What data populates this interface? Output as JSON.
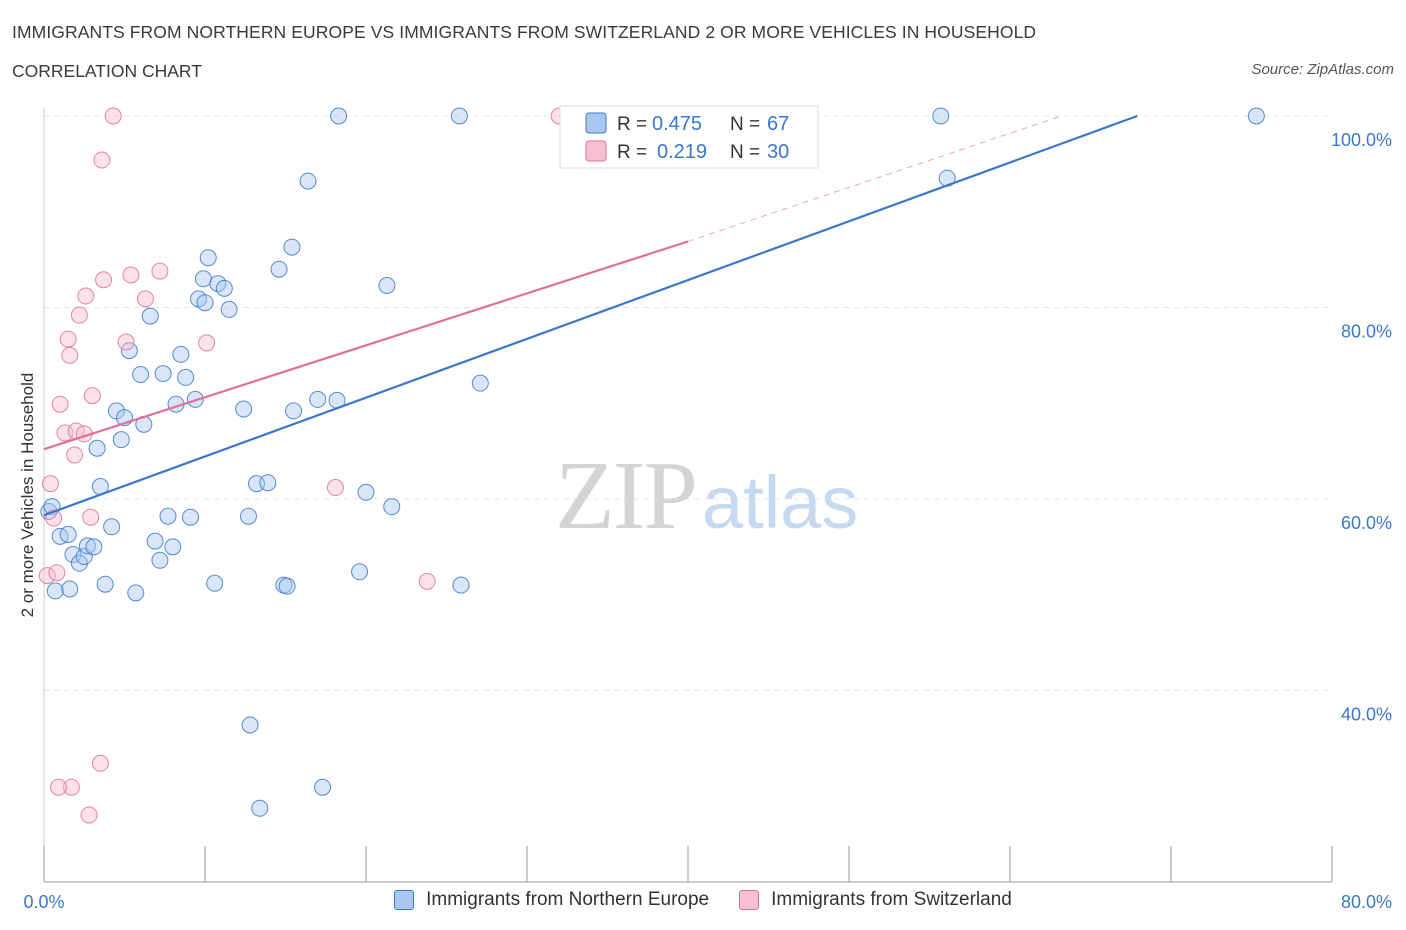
{
  "header": {
    "title": "IMMIGRANTS FROM NORTHERN EUROPE VS IMMIGRANTS FROM SWITZERLAND 2 OR MORE VEHICLES IN HOUSEHOLD",
    "subtitle": "CORRELATION CHART",
    "source": "Source: ZipAtlas.com"
  },
  "watermark": {
    "zip": "ZIP",
    "atlas": "atlas"
  },
  "chart_data": {
    "type": "scatter",
    "title": "IMMIGRANTS FROM NORTHERN EUROPE VS IMMIGRANTS FROM SWITZERLAND 2 OR MORE VEHICLES IN HOUSEHOLD",
    "xlabel": "",
    "ylabel": "2 or more Vehicles in Household",
    "xlim": [
      0,
      80
    ],
    "ylim": [
      20,
      100
    ],
    "x_tick_labels": [
      "0.0%",
      "80.0%"
    ],
    "y_ticks": [
      40,
      60,
      80,
      100
    ],
    "y_tick_labels": [
      "40.0%",
      "60.0%",
      "80.0%",
      "100.0%"
    ],
    "grid": true,
    "legend_position": "top-center",
    "stats": [
      {
        "r_label": "R =",
        "r": "0.475",
        "n_label": "N =",
        "n": "67"
      },
      {
        "r_label": "R =",
        "r": "0.219",
        "n_label": "N =",
        "n": "30"
      }
    ],
    "series": [
      {
        "name": "Immigrants from Northern Europe",
        "color": "#3b78c8",
        "fill": "#a9c7ef",
        "trend": {
          "x0": 0,
          "y0": 58.3,
          "x1": 67.9,
          "y1": 100
        },
        "points": [
          [
            0.3,
            58.7
          ],
          [
            0.5,
            59.2
          ],
          [
            0.7,
            50.4
          ],
          [
            1.0,
            56.1
          ],
          [
            1.5,
            56.3
          ],
          [
            1.6,
            50.6
          ],
          [
            1.8,
            54.2
          ],
          [
            2.2,
            53.3
          ],
          [
            2.5,
            54.0
          ],
          [
            2.7,
            55.1
          ],
          [
            3.1,
            55.0
          ],
          [
            3.3,
            65.3
          ],
          [
            3.5,
            61.3
          ],
          [
            3.8,
            51.1
          ],
          [
            4.2,
            57.1
          ],
          [
            4.5,
            69.2
          ],
          [
            4.8,
            66.2
          ],
          [
            5.0,
            68.5
          ],
          [
            5.3,
            75.5
          ],
          [
            5.7,
            50.2
          ],
          [
            6.0,
            73.0
          ],
          [
            6.2,
            67.8
          ],
          [
            6.6,
            79.1
          ],
          [
            6.9,
            55.6
          ],
          [
            7.2,
            53.6
          ],
          [
            7.4,
            73.1
          ],
          [
            7.7,
            58.2
          ],
          [
            8.0,
            55.0
          ],
          [
            8.2,
            69.9
          ],
          [
            8.5,
            75.1
          ],
          [
            8.8,
            72.7
          ],
          [
            9.1,
            58.1
          ],
          [
            9.4,
            70.4
          ],
          [
            9.6,
            80.9
          ],
          [
            9.9,
            83.0
          ],
          [
            10.0,
            80.5
          ],
          [
            10.2,
            85.2
          ],
          [
            10.6,
            51.2
          ],
          [
            10.8,
            82.5
          ],
          [
            11.2,
            82.0
          ],
          [
            11.5,
            79.8
          ],
          [
            12.4,
            69.4
          ],
          [
            12.7,
            58.2
          ],
          [
            12.8,
            36.4
          ],
          [
            13.2,
            61.6
          ],
          [
            13.4,
            27.7
          ],
          [
            13.9,
            61.7
          ],
          [
            14.6,
            84.0
          ],
          [
            14.9,
            51.0
          ],
          [
            15.1,
            50.9
          ],
          [
            15.4,
            86.3
          ],
          [
            15.5,
            69.2
          ],
          [
            16.4,
            93.2
          ],
          [
            17.0,
            70.4
          ],
          [
            17.3,
            29.9
          ],
          [
            18.2,
            70.3
          ],
          [
            18.3,
            100
          ],
          [
            19.6,
            52.4
          ],
          [
            20.0,
            60.7
          ],
          [
            21.3,
            82.3
          ],
          [
            21.6,
            59.2
          ],
          [
            25.9,
            51.0
          ],
          [
            25.8,
            100
          ],
          [
            27.1,
            72.1
          ],
          [
            55.7,
            100
          ],
          [
            56.1,
            93.5
          ],
          [
            75.3,
            100
          ]
        ]
      },
      {
        "name": "Immigrants from Switzerland",
        "color": "#e0709a",
        "fill": "#f7bfd0",
        "trend": {
          "x0": 0,
          "y0": 65.2,
          "x1": 40.0,
          "y1": 86.9
        },
        "trend_extension": {
          "x0": 40.0,
          "y0": 86.9,
          "x1": 63.2,
          "y1": 100
        },
        "points": [
          [
            0.2,
            52.0
          ],
          [
            0.4,
            61.6
          ],
          [
            0.6,
            58.0
          ],
          [
            0.8,
            52.3
          ],
          [
            1.0,
            69.9
          ],
          [
            1.3,
            66.9
          ],
          [
            1.5,
            76.7
          ],
          [
            1.6,
            75.0
          ],
          [
            1.7,
            29.9
          ],
          [
            1.9,
            64.6
          ],
          [
            2.0,
            67.1
          ],
          [
            2.2,
            79.2
          ],
          [
            2.5,
            66.8
          ],
          [
            2.6,
            81.2
          ],
          [
            2.8,
            27.0
          ],
          [
            2.9,
            58.1
          ],
          [
            3.0,
            70.8
          ],
          [
            3.5,
            32.4
          ],
          [
            3.6,
            95.4
          ],
          [
            3.7,
            82.9
          ],
          [
            4.3,
            100
          ],
          [
            5.1,
            76.4
          ],
          [
            5.4,
            83.4
          ],
          [
            6.3,
            80.9
          ],
          [
            7.2,
            83.8
          ],
          [
            10.1,
            76.3
          ],
          [
            18.1,
            61.2
          ],
          [
            23.8,
            51.4
          ],
          [
            32.0,
            100
          ],
          [
            0.9,
            29.9
          ]
        ]
      }
    ]
  }
}
